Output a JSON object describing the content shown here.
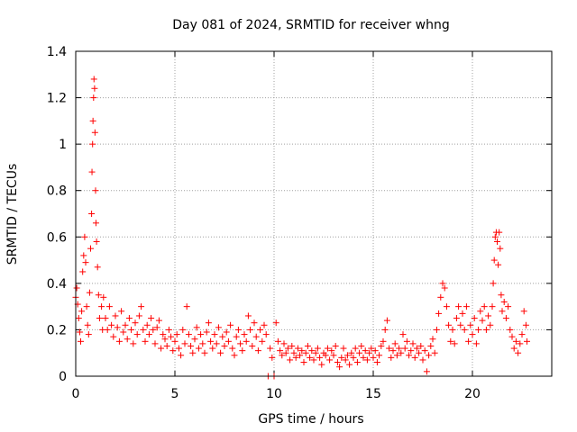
{
  "chart_data": {
    "type": "scatter",
    "title": "Day 081 of 2024, SRMTID for receiver whng",
    "xlabel": "GPS time / hours",
    "ylabel": "SRMTID / TECUs",
    "xlim": [
      0,
      24
    ],
    "ylim": [
      0,
      1.4
    ],
    "xticks": [
      0,
      5,
      10,
      15,
      20
    ],
    "xtick_labels": [
      "0",
      "5",
      "10",
      "15",
      "20"
    ],
    "yticks": [
      0,
      0.2,
      0.4,
      0.6,
      0.8,
      1,
      1.2,
      1.4
    ],
    "ytick_labels": [
      "0",
      "0.2",
      "0.4",
      "0.6",
      "0.8",
      "1",
      "1.2",
      "1.4"
    ],
    "grid": true,
    "marker": "+",
    "marker_color": "#ff0000",
    "series": [
      {
        "name": "SRMTID",
        "points": [
          [
            0.0,
            0.34
          ],
          [
            0.05,
            0.38
          ],
          [
            0.1,
            0.31
          ],
          [
            0.15,
            0.25
          ],
          [
            0.2,
            0.19
          ],
          [
            0.25,
            0.15
          ],
          [
            0.3,
            0.28
          ],
          [
            0.35,
            0.45
          ],
          [
            0.4,
            0.52
          ],
          [
            0.45,
            0.6
          ],
          [
            0.5,
            0.49
          ],
          [
            0.55,
            0.3
          ],
          [
            0.6,
            0.22
          ],
          [
            0.65,
            0.18
          ],
          [
            0.7,
            0.36
          ],
          [
            0.75,
            0.55
          ],
          [
            0.8,
            0.7
          ],
          [
            0.82,
            0.88
          ],
          [
            0.85,
            1.0
          ],
          [
            0.87,
            1.1
          ],
          [
            0.9,
            1.2
          ],
          [
            0.92,
            1.28
          ],
          [
            0.95,
            1.24
          ],
          [
            0.97,
            1.05
          ],
          [
            1.0,
            0.8
          ],
          [
            1.02,
            0.66
          ],
          [
            1.05,
            0.58
          ],
          [
            1.1,
            0.47
          ],
          [
            1.15,
            0.35
          ],
          [
            1.2,
            0.25
          ],
          [
            1.3,
            0.3
          ],
          [
            1.35,
            0.2
          ],
          [
            1.4,
            0.34
          ],
          [
            1.5,
            0.25
          ],
          [
            1.6,
            0.2
          ],
          [
            1.7,
            0.3
          ],
          [
            1.8,
            0.22
          ],
          [
            1.9,
            0.17
          ],
          [
            2.0,
            0.26
          ],
          [
            2.1,
            0.21
          ],
          [
            2.2,
            0.15
          ],
          [
            2.3,
            0.28
          ],
          [
            2.4,
            0.19
          ],
          [
            2.5,
            0.22
          ],
          [
            2.6,
            0.16
          ],
          [
            2.7,
            0.25
          ],
          [
            2.8,
            0.2
          ],
          [
            2.9,
            0.14
          ],
          [
            3.0,
            0.23
          ],
          [
            3.1,
            0.18
          ],
          [
            3.2,
            0.26
          ],
          [
            3.3,
            0.3
          ],
          [
            3.4,
            0.2
          ],
          [
            3.5,
            0.15
          ],
          [
            3.6,
            0.22
          ],
          [
            3.7,
            0.18
          ],
          [
            3.8,
            0.25
          ],
          [
            3.9,
            0.2
          ],
          [
            4.0,
            0.14
          ],
          [
            4.1,
            0.21
          ],
          [
            4.2,
            0.24
          ],
          [
            4.3,
            0.12
          ],
          [
            4.4,
            0.18
          ],
          [
            4.5,
            0.16
          ],
          [
            4.6,
            0.13
          ],
          [
            4.7,
            0.2
          ],
          [
            4.8,
            0.17
          ],
          [
            4.9,
            0.11
          ],
          [
            5.0,
            0.15
          ],
          [
            5.1,
            0.18
          ],
          [
            5.2,
            0.12
          ],
          [
            5.3,
            0.09
          ],
          [
            5.4,
            0.2
          ],
          [
            5.5,
            0.14
          ],
          [
            5.6,
            0.3
          ],
          [
            5.7,
            0.18
          ],
          [
            5.8,
            0.13
          ],
          [
            5.9,
            0.1
          ],
          [
            6.0,
            0.16
          ],
          [
            6.1,
            0.21
          ],
          [
            6.2,
            0.12
          ],
          [
            6.3,
            0.18
          ],
          [
            6.4,
            0.14
          ],
          [
            6.5,
            0.1
          ],
          [
            6.6,
            0.19
          ],
          [
            6.7,
            0.23
          ],
          [
            6.8,
            0.15
          ],
          [
            6.9,
            0.12
          ],
          [
            7.0,
            0.18
          ],
          [
            7.1,
            0.14
          ],
          [
            7.2,
            0.21
          ],
          [
            7.3,
            0.1
          ],
          [
            7.4,
            0.17
          ],
          [
            7.5,
            0.13
          ],
          [
            7.6,
            0.19
          ],
          [
            7.7,
            0.15
          ],
          [
            7.8,
            0.22
          ],
          [
            7.9,
            0.12
          ],
          [
            8.0,
            0.09
          ],
          [
            8.1,
            0.17
          ],
          [
            8.2,
            0.2
          ],
          [
            8.3,
            0.14
          ],
          [
            8.4,
            0.11
          ],
          [
            8.5,
            0.18
          ],
          [
            8.6,
            0.15
          ],
          [
            8.7,
            0.26
          ],
          [
            8.8,
            0.2
          ],
          [
            8.9,
            0.13
          ],
          [
            9.0,
            0.23
          ],
          [
            9.1,
            0.17
          ],
          [
            9.2,
            0.11
          ],
          [
            9.3,
            0.2
          ],
          [
            9.4,
            0.15
          ],
          [
            9.5,
            0.22
          ],
          [
            9.6,
            0.18
          ],
          [
            9.7,
            0.0
          ],
          [
            9.8,
            0.12
          ],
          [
            9.9,
            0.08
          ],
          [
            10.0,
            0.0
          ],
          [
            10.1,
            0.23
          ],
          [
            10.2,
            0.15
          ],
          [
            10.3,
            0.11
          ],
          [
            10.4,
            0.09
          ],
          [
            10.5,
            0.14
          ],
          [
            10.6,
            0.1
          ],
          [
            10.7,
            0.12
          ],
          [
            10.8,
            0.07
          ],
          [
            10.9,
            0.13
          ],
          [
            11.0,
            0.1
          ],
          [
            11.1,
            0.08
          ],
          [
            11.2,
            0.12
          ],
          [
            11.3,
            0.09
          ],
          [
            11.4,
            0.11
          ],
          [
            11.5,
            0.06
          ],
          [
            11.6,
            0.1
          ],
          [
            11.7,
            0.13
          ],
          [
            11.8,
            0.08
          ],
          [
            11.9,
            0.11
          ],
          [
            12.0,
            0.07
          ],
          [
            12.1,
            0.1
          ],
          [
            12.2,
            0.12
          ],
          [
            12.3,
            0.08
          ],
          [
            12.4,
            0.05
          ],
          [
            12.5,
            0.1
          ],
          [
            12.6,
            0.09
          ],
          [
            12.7,
            0.12
          ],
          [
            12.8,
            0.07
          ],
          [
            12.9,
            0.11
          ],
          [
            13.0,
            0.09
          ],
          [
            13.1,
            0.13
          ],
          [
            13.2,
            0.06
          ],
          [
            13.3,
            0.04
          ],
          [
            13.4,
            0.08
          ],
          [
            13.5,
            0.12
          ],
          [
            13.6,
            0.07
          ],
          [
            13.7,
            0.09
          ],
          [
            13.8,
            0.05
          ],
          [
            13.9,
            0.1
          ],
          [
            14.0,
            0.08
          ],
          [
            14.1,
            0.12
          ],
          [
            14.2,
            0.06
          ],
          [
            14.3,
            0.1
          ],
          [
            14.4,
            0.13
          ],
          [
            14.5,
            0.08
          ],
          [
            14.6,
            0.11
          ],
          [
            14.7,
            0.07
          ],
          [
            14.8,
            0.1
          ],
          [
            14.9,
            0.12
          ],
          [
            15.0,
            0.08
          ],
          [
            15.1,
            0.11
          ],
          [
            15.2,
            0.06
          ],
          [
            15.3,
            0.09
          ],
          [
            15.4,
            0.13
          ],
          [
            15.5,
            0.15
          ],
          [
            15.6,
            0.2
          ],
          [
            15.7,
            0.24
          ],
          [
            15.8,
            0.12
          ],
          [
            15.9,
            0.08
          ],
          [
            16.0,
            0.11
          ],
          [
            16.1,
            0.14
          ],
          [
            16.2,
            0.09
          ],
          [
            16.3,
            0.12
          ],
          [
            16.4,
            0.1
          ],
          [
            16.5,
            0.18
          ],
          [
            16.6,
            0.12
          ],
          [
            16.7,
            0.15
          ],
          [
            16.8,
            0.09
          ],
          [
            16.9,
            0.11
          ],
          [
            17.0,
            0.14
          ],
          [
            17.1,
            0.08
          ],
          [
            17.2,
            0.12
          ],
          [
            17.3,
            0.1
          ],
          [
            17.4,
            0.13
          ],
          [
            17.5,
            0.07
          ],
          [
            17.6,
            0.11
          ],
          [
            17.7,
            0.02
          ],
          [
            17.8,
            0.09
          ],
          [
            17.9,
            0.13
          ],
          [
            18.0,
            0.16
          ],
          [
            18.1,
            0.1
          ],
          [
            18.2,
            0.2
          ],
          [
            18.3,
            0.27
          ],
          [
            18.4,
            0.34
          ],
          [
            18.5,
            0.4
          ],
          [
            18.6,
            0.38
          ],
          [
            18.7,
            0.3
          ],
          [
            18.8,
            0.22
          ],
          [
            18.9,
            0.15
          ],
          [
            19.0,
            0.2
          ],
          [
            19.1,
            0.14
          ],
          [
            19.2,
            0.25
          ],
          [
            19.3,
            0.3
          ],
          [
            19.4,
            0.22
          ],
          [
            19.5,
            0.27
          ],
          [
            19.6,
            0.2
          ],
          [
            19.7,
            0.3
          ],
          [
            19.8,
            0.15
          ],
          [
            19.9,
            0.22
          ],
          [
            20.0,
            0.18
          ],
          [
            20.1,
            0.25
          ],
          [
            20.2,
            0.14
          ],
          [
            20.3,
            0.2
          ],
          [
            20.4,
            0.28
          ],
          [
            20.5,
            0.24
          ],
          [
            20.6,
            0.3
          ],
          [
            20.7,
            0.2
          ],
          [
            20.8,
            0.26
          ],
          [
            20.9,
            0.22
          ],
          [
            21.0,
            0.3
          ],
          [
            21.05,
            0.4
          ],
          [
            21.1,
            0.5
          ],
          [
            21.15,
            0.6
          ],
          [
            21.2,
            0.62
          ],
          [
            21.25,
            0.58
          ],
          [
            21.3,
            0.48
          ],
          [
            21.35,
            0.62
          ],
          [
            21.4,
            0.55
          ],
          [
            21.45,
            0.35
          ],
          [
            21.5,
            0.28
          ],
          [
            21.6,
            0.32
          ],
          [
            21.7,
            0.25
          ],
          [
            21.8,
            0.3
          ],
          [
            21.9,
            0.2
          ],
          [
            22.0,
            0.17
          ],
          [
            22.1,
            0.12
          ],
          [
            22.2,
            0.15
          ],
          [
            22.3,
            0.1
          ],
          [
            22.4,
            0.14
          ],
          [
            22.5,
            0.18
          ],
          [
            22.6,
            0.28
          ],
          [
            22.7,
            0.22
          ],
          [
            22.75,
            0.15
          ]
        ]
      }
    ]
  }
}
